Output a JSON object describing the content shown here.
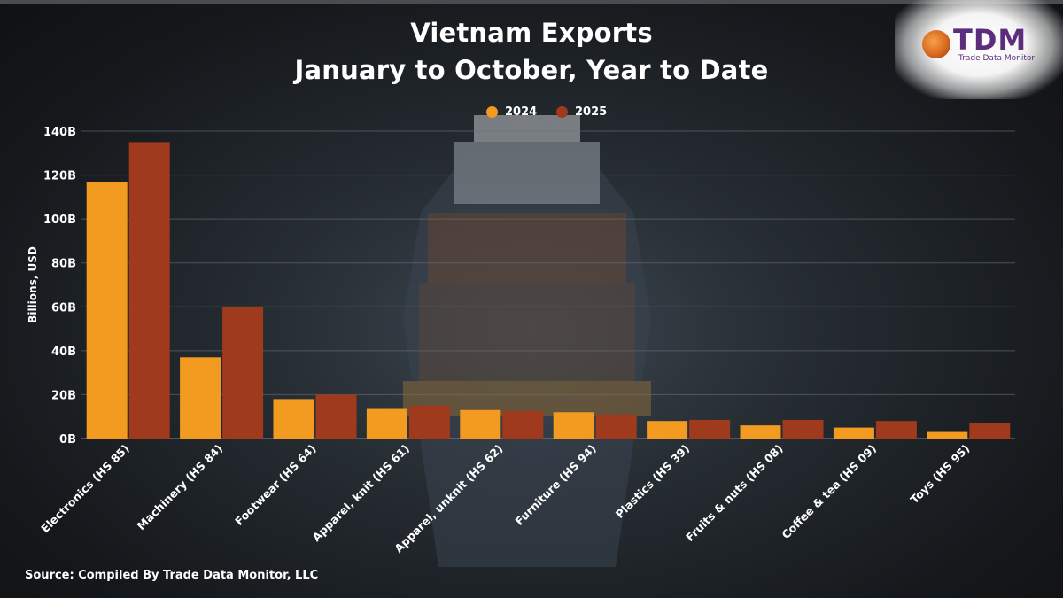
{
  "header": {
    "title_line1": "Vietnam Exports",
    "title_line2": "January to October, Year to Date"
  },
  "logo": {
    "name": "TDM",
    "tagline": "Trade Data Monitor",
    "icon": "globe-icon"
  },
  "source": "Source: Compiled By Trade Data Monitor, LLC",
  "colors": {
    "2024": "#f39a21",
    "2025": "#a03a1d",
    "grid": "#6b7177"
  },
  "chart_data": {
    "type": "bar",
    "title": "Vietnam Exports January to October, Year to Date",
    "xlabel": "",
    "ylabel": "Billions, USD",
    "ylim": [
      0,
      140
    ],
    "yticks": [
      0,
      20,
      40,
      60,
      80,
      100,
      120,
      140
    ],
    "ytick_labels": [
      "0B",
      "20B",
      "40B",
      "60B",
      "80B",
      "100B",
      "120B",
      "140B"
    ],
    "grid": true,
    "legend_position": "top-center",
    "categories": [
      "Electronics (HS 85)",
      "Machinery (HS 84)",
      "Footwear (HS 64)",
      "Apparel, knit (HS 61)",
      "Apparel, unknit (HS 62)",
      "Furniture (HS 94)",
      "Plastics (HS 39)",
      "Fruits & nuts (HS 08)",
      "Coffee & tea (HS 09)",
      "Toys (HS 95)"
    ],
    "series": [
      {
        "name": "2024",
        "values": [
          117,
          37,
          18,
          13.5,
          13,
          12,
          8,
          6,
          5,
          3
        ]
      },
      {
        "name": "2025",
        "values": [
          135,
          60,
          20,
          15,
          12.5,
          11,
          8.5,
          8.5,
          8,
          7
        ]
      }
    ]
  }
}
